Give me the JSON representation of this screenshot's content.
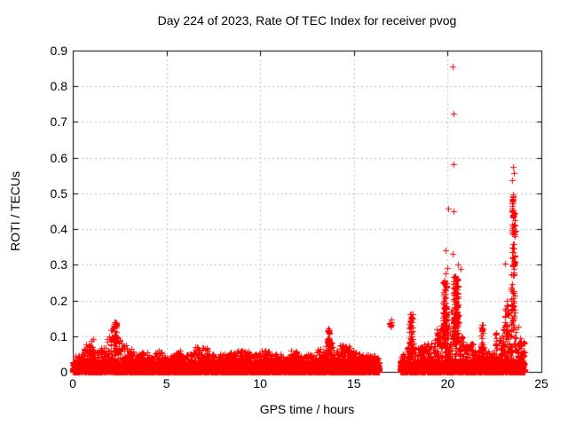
{
  "chart_data": {
    "type": "scatter",
    "title": "Day 224 of 2023, Rate Of TEC Index for receiver pvog",
    "xlabel": "GPS time / hours",
    "ylabel": "ROTI / TECUs",
    "series_name": "ROTI",
    "xlim": [
      0,
      25
    ],
    "ylim": [
      0,
      0.9
    ],
    "xtick_labels": [
      "0",
      "5",
      "10",
      "15",
      "20",
      "25"
    ],
    "ytick_labels": [
      "0",
      "0.1",
      "0.2",
      "0.3",
      "0.4",
      "0.5",
      "0.6",
      "0.7",
      "0.8",
      "0.9"
    ],
    "grid": true,
    "grid_style": "dashed",
    "legend": "none",
    "marker": "plus",
    "colors": {
      "marker": "#ff0000",
      "grid": "#c0c0c0",
      "axis": "#000000",
      "background": "#ffffff"
    },
    "data_coverage_hours": [
      [
        0,
        16.35
      ],
      [
        17.45,
        24.1
      ]
    ],
    "base_floor_max_tecu": 0.028,
    "envelope_segments": [
      [
        0.0,
        0.35,
        0.045
      ],
      [
        0.35,
        0.6,
        0.05
      ],
      [
        0.6,
        0.9,
        0.08
      ],
      [
        0.9,
        1.15,
        0.095
      ],
      [
        1.15,
        1.45,
        0.06
      ],
      [
        1.45,
        1.8,
        0.07
      ],
      [
        1.8,
        2.05,
        0.1
      ],
      [
        2.05,
        2.2,
        0.13
      ],
      [
        2.2,
        2.4,
        0.145
      ],
      [
        2.4,
        2.6,
        0.105
      ],
      [
        2.6,
        2.9,
        0.075
      ],
      [
        2.9,
        3.2,
        0.065
      ],
      [
        3.2,
        3.6,
        0.05
      ],
      [
        3.6,
        4.0,
        0.055
      ],
      [
        4.0,
        4.3,
        0.045
      ],
      [
        4.3,
        4.75,
        0.06
      ],
      [
        4.75,
        5.2,
        0.045
      ],
      [
        5.2,
        5.45,
        0.05
      ],
      [
        5.45,
        5.85,
        0.06
      ],
      [
        5.85,
        6.25,
        0.05
      ],
      [
        6.25,
        6.5,
        0.055
      ],
      [
        6.5,
        7.2,
        0.07
      ],
      [
        7.2,
        7.75,
        0.05
      ],
      [
        7.75,
        8.3,
        0.05
      ],
      [
        8.3,
        8.8,
        0.055
      ],
      [
        8.8,
        9.4,
        0.06
      ],
      [
        9.4,
        9.9,
        0.05
      ],
      [
        9.9,
        10.6,
        0.06
      ],
      [
        10.6,
        11.1,
        0.05
      ],
      [
        11.1,
        11.6,
        0.045
      ],
      [
        11.6,
        12.0,
        0.06
      ],
      [
        12.0,
        12.5,
        0.045
      ],
      [
        12.5,
        13.0,
        0.05
      ],
      [
        13.0,
        13.45,
        0.065
      ],
      [
        13.45,
        13.9,
        0.085
      ],
      [
        13.9,
        14.2,
        0.06
      ],
      [
        14.2,
        14.8,
        0.075
      ],
      [
        14.8,
        15.3,
        0.06
      ],
      [
        15.3,
        15.9,
        0.05
      ],
      [
        15.9,
        16.35,
        0.045
      ],
      [
        17.45,
        17.85,
        0.05
      ],
      [
        17.85,
        18.2,
        0.08
      ],
      [
        18.2,
        18.65,
        0.07
      ],
      [
        18.65,
        19.15,
        0.08
      ],
      [
        19.15,
        19.55,
        0.11
      ],
      [
        19.55,
        19.75,
        0.14
      ],
      [
        19.75,
        19.95,
        0.17
      ],
      [
        19.95,
        20.15,
        0.13
      ],
      [
        20.15,
        20.6,
        0.17
      ],
      [
        20.6,
        20.85,
        0.1
      ],
      [
        20.85,
        21.45,
        0.08
      ],
      [
        21.45,
        21.7,
        0.06
      ],
      [
        21.7,
        21.95,
        0.09
      ],
      [
        21.95,
        22.5,
        0.06
      ],
      [
        22.5,
        23.0,
        0.11
      ],
      [
        23.0,
        23.3,
        0.14
      ],
      [
        23.3,
        23.65,
        0.13
      ],
      [
        23.65,
        24.1,
        0.09
      ]
    ],
    "dense_columns": [
      [
        2.25,
        0.08,
        0.06,
        0.145,
        30
      ],
      [
        13.65,
        0.06,
        0.05,
        0.135,
        25
      ],
      [
        16.95,
        0.07,
        0.125,
        0.148,
        6
      ],
      [
        18.05,
        0.1,
        0.05,
        0.165,
        45
      ],
      [
        19.85,
        0.09,
        0.08,
        0.26,
        95
      ],
      [
        20.42,
        0.13,
        0.08,
        0.27,
        110
      ],
      [
        21.83,
        0.07,
        0.05,
        0.135,
        25
      ],
      [
        23.1,
        0.14,
        0.1,
        0.2,
        22
      ],
      [
        23.48,
        0.1,
        0.13,
        0.285,
        35
      ],
      [
        23.5,
        0.08,
        0.285,
        0.5,
        65
      ]
    ],
    "outlier_points": [
      [
        20.28,
        0.855
      ],
      [
        20.32,
        0.723
      ],
      [
        20.3,
        0.582
      ],
      [
        20.05,
        0.458
      ],
      [
        20.31,
        0.45
      ],
      [
        19.9,
        0.341
      ],
      [
        20.26,
        0.33
      ],
      [
        19.9,
        0.276
      ],
      [
        20.0,
        0.292
      ],
      [
        20.55,
        0.3
      ],
      [
        20.7,
        0.289
      ],
      [
        23.48,
        0.574
      ],
      [
        23.53,
        0.556
      ],
      [
        23.44,
        0.538
      ],
      [
        23.05,
        0.303
      ],
      [
        23.65,
        0.395
      ],
      [
        23.75,
        0.128
      ],
      [
        23.85,
        0.095
      ],
      [
        19.4,
        0.12
      ],
      [
        16.9,
        0.135
      ]
    ]
  }
}
